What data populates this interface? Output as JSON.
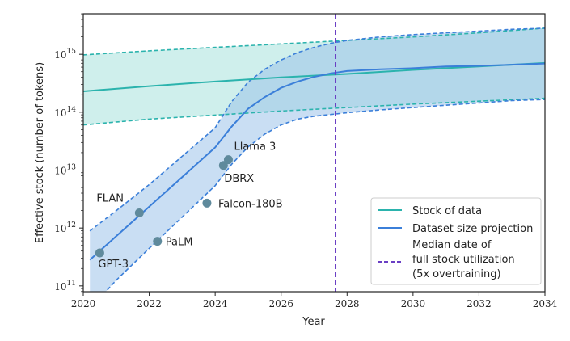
{
  "chart_data": {
    "type": "line",
    "xlabel": "Year",
    "ylabel": "Effective stock (number of tokens)",
    "xlim": [
      2020,
      2034
    ],
    "ylim_log10": [
      10.9,
      15.7
    ],
    "y_scale": "log",
    "grid": false,
    "x_ticks": [
      "2020",
      "2022",
      "2024",
      "2026",
      "2028",
      "2030",
      "2032",
      "2034"
    ],
    "y_ticks": [
      {
        "base": "10",
        "exp": "11",
        "log10": 11
      },
      {
        "base": "10",
        "exp": "12",
        "log10": 12
      },
      {
        "base": "10",
        "exp": "13",
        "log10": 13
      },
      {
        "base": "10",
        "exp": "14",
        "log10": 14
      },
      {
        "base": "10",
        "exp": "15",
        "log10": 15
      }
    ],
    "colors": {
      "stock": "#2bb3ad",
      "stock_band": "#bfe9e6",
      "projection": "#3b7fd9",
      "projection_band": "#9cc3ea",
      "median": "#6a3fc4",
      "points": "#5f8a9c"
    },
    "series": [
      {
        "name": "Stock of data",
        "x": [
          2020,
          2022,
          2024,
          2026,
          2028,
          2030,
          2032,
          2034
        ],
        "y_log10": [
          14.36,
          14.45,
          14.53,
          14.6,
          14.66,
          14.73,
          14.79,
          14.85
        ],
        "lower_log10": [
          13.78,
          13.88,
          13.95,
          14.02,
          14.08,
          14.14,
          14.19,
          14.24
        ],
        "upper_log10": [
          14.99,
          15.06,
          15.12,
          15.18,
          15.24,
          15.3,
          15.37,
          15.45
        ]
      },
      {
        "name": "Dataset size projection",
        "x": [
          2020.2,
          2021,
          2022,
          2023,
          2024,
          2024.5,
          2025,
          2025.5,
          2026,
          2026.5,
          2027,
          2027.5,
          2028,
          2029,
          2030,
          2031,
          2032,
          2033,
          2034
        ],
        "y_log10": [
          11.45,
          11.86,
          12.37,
          12.88,
          13.39,
          13.75,
          14.06,
          14.26,
          14.42,
          14.53,
          14.61,
          14.67,
          14.71,
          14.74,
          14.76,
          14.79,
          14.8,
          14.82,
          14.84
        ],
        "lower_log10": [
          10.6,
          11.1,
          11.65,
          12.19,
          12.73,
          13.1,
          13.4,
          13.62,
          13.78,
          13.88,
          13.93,
          13.96,
          13.99,
          14.04,
          14.08,
          14.12,
          14.16,
          14.2,
          14.22
        ],
        "upper_log10": [
          11.95,
          12.3,
          12.75,
          13.24,
          13.73,
          14.18,
          14.52,
          14.74,
          14.9,
          15.03,
          15.12,
          15.19,
          15.24,
          15.3,
          15.34,
          15.37,
          15.4,
          15.43,
          15.45
        ]
      }
    ],
    "median_full_utilization_year": 2027.65,
    "models": [
      {
        "name": "GPT-3",
        "year": 2020.5,
        "log10_tokens": 11.57
      },
      {
        "name": "FLAN",
        "year": 2021.7,
        "log10_tokens": 12.26
      },
      {
        "name": "PaLM",
        "year": 2022.25,
        "log10_tokens": 11.77
      },
      {
        "name": "Falcon-180B",
        "year": 2023.75,
        "log10_tokens": 12.43
      },
      {
        "name": "DBRX",
        "year": 2024.25,
        "log10_tokens": 13.08
      },
      {
        "name": "Llama 3",
        "year": 2024.4,
        "log10_tokens": 13.18
      }
    ],
    "legend": {
      "placement": "lower-right",
      "entries": [
        {
          "label": "Stock of data",
          "style": "solid",
          "color_key": "stock"
        },
        {
          "label": "Dataset size projection",
          "style": "solid",
          "color_key": "projection"
        },
        {
          "label": "Median date of",
          "style": "dashed",
          "color_key": "median"
        },
        {
          "label": "full stock utilization",
          "style": "none"
        },
        {
          "label": "(5x overtraining)",
          "style": "none"
        }
      ]
    }
  }
}
